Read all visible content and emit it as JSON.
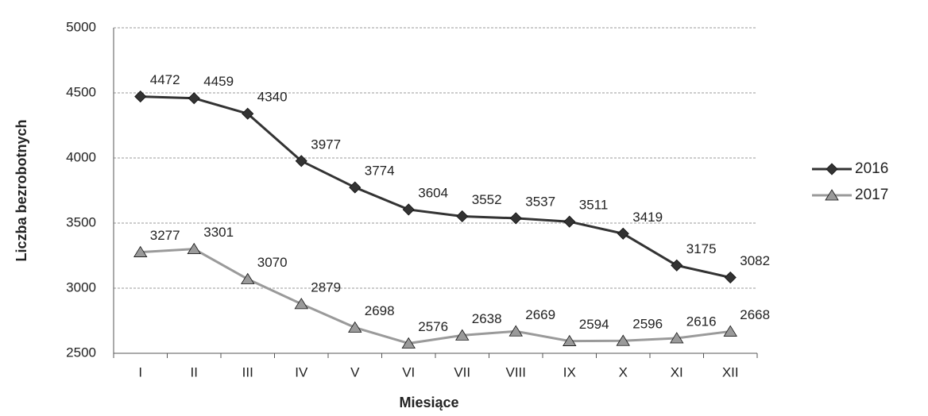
{
  "chart_data": {
    "type": "line",
    "x_label": "Miesiące",
    "y_label": "Liczba bezrobotnych",
    "categories": [
      "I",
      "II",
      "III",
      "IV",
      "V",
      "VI",
      "VII",
      "VIII",
      "IX",
      "X",
      "XI",
      "XII"
    ],
    "series": [
      {
        "name": "2016",
        "color": "#333333",
        "marker": "diamond",
        "values": [
          4472,
          4459,
          4340,
          3977,
          3774,
          3604,
          3552,
          3537,
          3511,
          3419,
          3175,
          3082
        ]
      },
      {
        "name": "2017",
        "color": "#9a9a9a",
        "marker": "triangle",
        "values": [
          3277,
          3301,
          3070,
          2879,
          2698,
          2576,
          2638,
          2669,
          2594,
          2596,
          2616,
          2668
        ]
      }
    ],
    "ylim": [
      2500,
      5000
    ],
    "yticks": [
      2500,
      3000,
      3500,
      4000,
      4500,
      5000
    ],
    "grid": true,
    "legend": "right"
  }
}
